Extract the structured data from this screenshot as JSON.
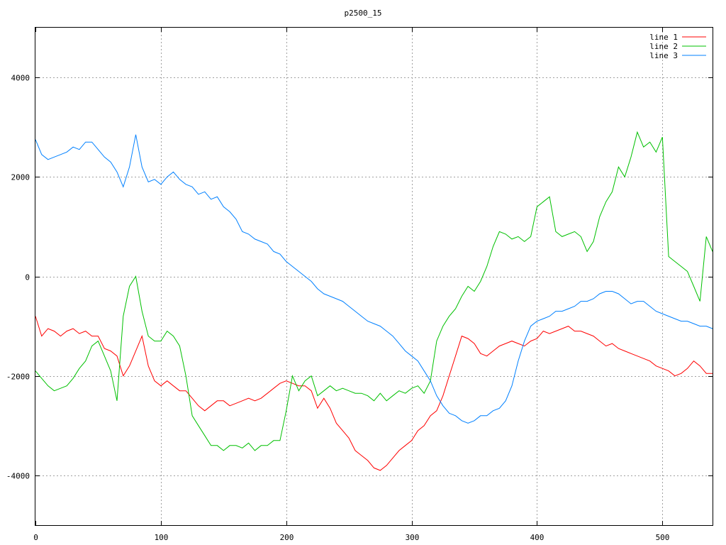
{
  "chart_data": {
    "type": "line",
    "title": "p2500_15",
    "xlabel": "",
    "ylabel": "",
    "xlim": [
      0,
      540
    ],
    "ylim": [
      -5000,
      5000
    ],
    "grid": true,
    "legend_position": "top-right",
    "x_ticks": [
      0,
      100,
      200,
      300,
      400,
      500
    ],
    "y_ticks": [
      -4000,
      -2000,
      0,
      2000,
      4000
    ],
    "x_tick_labels": [
      "0",
      "100",
      "200",
      "300",
      "400",
      "500"
    ],
    "y_tick_labels": [
      "-4000",
      "-2000",
      "0",
      "2000",
      "4000"
    ],
    "series": [
      {
        "name": "line 1",
        "color": "#ff0000",
        "x": [
          0,
          5,
          10,
          15,
          20,
          25,
          30,
          35,
          40,
          45,
          50,
          55,
          60,
          65,
          70,
          75,
          80,
          85,
          90,
          95,
          100,
          105,
          110,
          115,
          120,
          125,
          130,
          135,
          140,
          145,
          150,
          155,
          160,
          165,
          170,
          175,
          180,
          185,
          190,
          195,
          200,
          205,
          210,
          215,
          220,
          225,
          230,
          235,
          240,
          245,
          250,
          255,
          260,
          265,
          270,
          275,
          280,
          285,
          290,
          295,
          300,
          305,
          310,
          315,
          320,
          325,
          330,
          335,
          340,
          345,
          350,
          355,
          360,
          365,
          370,
          375,
          380,
          385,
          390,
          395,
          400,
          405,
          410,
          415,
          420,
          425,
          430,
          435,
          440,
          445,
          450,
          455,
          460,
          465,
          470,
          475,
          480,
          485,
          490,
          495,
          500,
          505,
          510,
          515,
          520,
          525,
          530,
          535,
          540
        ],
        "values": [
          -800,
          -1200,
          -1050,
          -1100,
          -1200,
          -1100,
          -1050,
          -1150,
          -1100,
          -1200,
          -1200,
          -1450,
          -1500,
          -1600,
          -2000,
          -1800,
          -1500,
          -1200,
          -1800,
          -2100,
          -2200,
          -2100,
          -2200,
          -2300,
          -2300,
          -2450,
          -2600,
          -2700,
          -2600,
          -2500,
          -2500,
          -2600,
          -2550,
          -2500,
          -2450,
          -2500,
          -2450,
          -2350,
          -2250,
          -2150,
          -2100,
          -2150,
          -2200,
          -2200,
          -2300,
          -2650,
          -2450,
          -2650,
          -2950,
          -3100,
          -3250,
          -3500,
          -3600,
          -3700,
          -3850,
          -3900,
          -3800,
          -3650,
          -3500,
          -3400,
          -3300,
          -3100,
          -3000,
          -2800,
          -2700,
          -2400,
          -2000,
          -1600,
          -1200,
          -1250,
          -1350,
          -1550,
          -1600,
          -1500,
          -1400,
          -1350,
          -1300,
          -1350,
          -1400,
          -1300,
          -1250,
          -1100,
          -1150,
          -1100,
          -1050,
          -1000,
          -1100,
          -1100,
          -1150,
          -1200,
          -1300,
          -1400,
          -1350,
          -1450,
          -1500,
          -1550,
          -1600,
          -1650,
          -1700,
          -1800,
          -1850,
          -1900,
          -2000,
          -1950,
          -1850,
          -1700,
          -1800,
          -1950,
          -1950
        ]
      },
      {
        "name": "line 2",
        "color": "#00c000",
        "x": [
          0,
          5,
          10,
          15,
          20,
          25,
          30,
          35,
          40,
          45,
          50,
          55,
          60,
          65,
          70,
          75,
          80,
          85,
          90,
          95,
          100,
          105,
          110,
          115,
          120,
          125,
          130,
          135,
          140,
          145,
          150,
          155,
          160,
          165,
          170,
          175,
          180,
          185,
          190,
          195,
          200,
          205,
          210,
          215,
          220,
          225,
          230,
          235,
          240,
          245,
          250,
          255,
          260,
          265,
          270,
          275,
          280,
          285,
          290,
          295,
          300,
          305,
          310,
          315,
          320,
          325,
          330,
          335,
          340,
          345,
          350,
          355,
          360,
          365,
          370,
          375,
          380,
          385,
          390,
          395,
          400,
          405,
          410,
          415,
          420,
          425,
          430,
          435,
          440,
          445,
          450,
          455,
          460,
          465,
          470,
          475,
          480,
          485,
          490,
          495,
          500,
          505,
          510,
          515,
          520,
          525,
          530,
          535,
          540
        ],
        "values": [
          -1900,
          -2050,
          -2200,
          -2300,
          -2250,
          -2200,
          -2050,
          -1850,
          -1700,
          -1400,
          -1300,
          -1600,
          -1900,
          -2500,
          -800,
          -200,
          0,
          -700,
          -1200,
          -1300,
          -1300,
          -1100,
          -1200,
          -1400,
          -2000,
          -2800,
          -3000,
          -3200,
          -3400,
          -3400,
          -3500,
          -3400,
          -3400,
          -3450,
          -3350,
          -3500,
          -3400,
          -3400,
          -3300,
          -3300,
          -2700,
          -2000,
          -2300,
          -2100,
          -2000,
          -2400,
          -2300,
          -2200,
          -2300,
          -2250,
          -2300,
          -2350,
          -2350,
          -2400,
          -2500,
          -2350,
          -2500,
          -2400,
          -2300,
          -2350,
          -2250,
          -2200,
          -2350,
          -2100,
          -1300,
          -1000,
          -800,
          -650,
          -400,
          -200,
          -300,
          -100,
          200,
          600,
          900,
          850,
          750,
          800,
          700,
          800,
          1400,
          1500,
          1600,
          900,
          800,
          850,
          900,
          800,
          500,
          700,
          1200,
          1500,
          1700,
          2200,
          2000,
          2400,
          2900,
          2600,
          2700,
          2500,
          2800,
          400,
          300,
          200,
          100,
          -200,
          -500,
          800,
          500
        ]
      },
      {
        "name": "line 3",
        "color": "#0080ff",
        "x": [
          0,
          5,
          10,
          15,
          20,
          25,
          30,
          35,
          40,
          45,
          50,
          55,
          60,
          65,
          70,
          75,
          80,
          85,
          90,
          95,
          100,
          105,
          110,
          115,
          120,
          125,
          130,
          135,
          140,
          145,
          150,
          155,
          160,
          165,
          170,
          175,
          180,
          185,
          190,
          195,
          200,
          205,
          210,
          215,
          220,
          225,
          230,
          235,
          240,
          245,
          250,
          255,
          260,
          265,
          270,
          275,
          280,
          285,
          290,
          295,
          300,
          305,
          310,
          315,
          320,
          325,
          330,
          335,
          340,
          345,
          350,
          355,
          360,
          365,
          370,
          375,
          380,
          385,
          390,
          395,
          400,
          405,
          410,
          415,
          420,
          425,
          430,
          435,
          440,
          445,
          450,
          455,
          460,
          465,
          470,
          475,
          480,
          485,
          490,
          495,
          500,
          505,
          510,
          515,
          520,
          525,
          530,
          535,
          540
        ],
        "values": [
          2750,
          2450,
          2350,
          2400,
          2450,
          2500,
          2600,
          2550,
          2700,
          2700,
          2550,
          2400,
          2300,
          2100,
          1800,
          2200,
          2850,
          2200,
          1900,
          1950,
          1850,
          2000,
          2100,
          1950,
          1850,
          1800,
          1650,
          1700,
          1550,
          1600,
          1400,
          1300,
          1150,
          900,
          850,
          750,
          700,
          650,
          500,
          450,
          300,
          200,
          100,
          0,
          -100,
          -250,
          -350,
          -400,
          -450,
          -500,
          -600,
          -700,
          -800,
          -900,
          -950,
          -1000,
          -1100,
          -1200,
          -1350,
          -1500,
          -1600,
          -1700,
          -1900,
          -2100,
          -2400,
          -2600,
          -2750,
          -2800,
          -2900,
          -2950,
          -2900,
          -2800,
          -2800,
          -2700,
          -2650,
          -2500,
          -2200,
          -1700,
          -1300,
          -1000,
          -900,
          -850,
          -800,
          -700,
          -700,
          -650,
          -600,
          -500,
          -500,
          -450,
          -350,
          -300,
          -300,
          -350,
          -450,
          -550,
          -500,
          -500,
          -600,
          -700,
          -750,
          -800,
          -850,
          -900,
          -900,
          -950,
          -1000,
          -1000,
          -1050
        ]
      }
    ]
  }
}
